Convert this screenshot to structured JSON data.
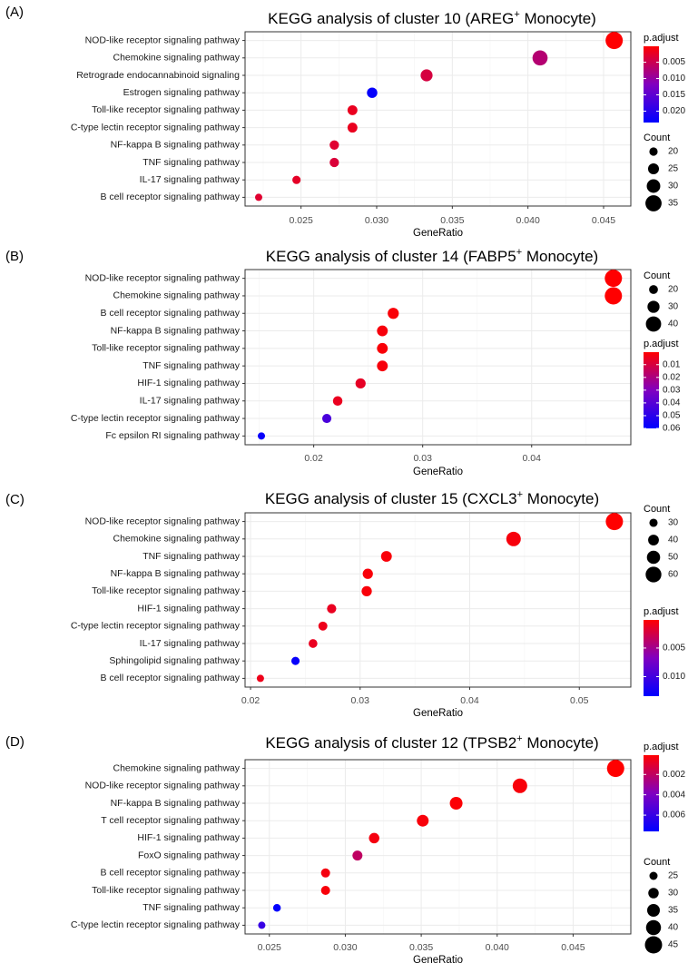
{
  "colors": {
    "low": "#ff0000",
    "high": "#0000ff",
    "mid": "#8000c0",
    "grid": "#ebebeb",
    "frame": "#333333"
  },
  "chart_data": [
    {
      "type": "scatter",
      "panel": "(A)",
      "title_pre": "KEGG analysis of cluster 10 (AREG",
      "title_sup": "+",
      "title_post": " Monocyte)",
      "xlabel": "GeneRatio",
      "xlim": [
        0.0213,
        0.0468
      ],
      "xticks": [
        0.025,
        0.03,
        0.035,
        0.04,
        0.045
      ],
      "xtick_labels": [
        "0.025",
        "0.030",
        "0.035",
        "0.040",
        "0.045"
      ],
      "categories": [
        "NOD-like receptor signaling pathway",
        "Chemokine signaling pathway",
        "Retrograde endocannabinoid signaling",
        "Estrogen signaling pathway",
        "Toll-like receptor signaling pathway",
        "C-type lectin receptor signaling pathway",
        "NF-kappa B signaling pathway",
        "TNF signaling pathway",
        "IL-17 signaling pathway",
        "B cell receptor signaling pathway"
      ],
      "x": [
        0.0457,
        0.0408,
        0.0333,
        0.0297,
        0.0284,
        0.0284,
        0.0272,
        0.0272,
        0.0247,
        0.0222
      ],
      "count": [
        37,
        33,
        27,
        24,
        23,
        23,
        22,
        22,
        20,
        18
      ],
      "p_adjust": [
        0.0002,
        0.007,
        0.004,
        0.023,
        0.002,
        0.002,
        0.003,
        0.0035,
        0.0025,
        0.003
      ],
      "color_range": [
        0.0001,
        0.0235
      ],
      "size_legend": {
        "title": "Count",
        "values": [
          20,
          25,
          30,
          35
        ],
        "labels": [
          "20",
          "25",
          "30",
          "35"
        ]
      },
      "color_legend": {
        "title": "p.adjust",
        "ticks": [
          0.005,
          0.01,
          0.015,
          0.02
        ],
        "labels": [
          "0.005",
          "0.010",
          "0.015",
          "0.020"
        ]
      },
      "legend_order": "color-first"
    },
    {
      "type": "scatter",
      "panel": "(B)",
      "title_pre": "KEGG analysis of cluster 14 (FABP5",
      "title_sup": "+",
      "title_post": " Monocyte)",
      "xlabel": "GeneRatio",
      "xlim": [
        0.0137,
        0.0491
      ],
      "xticks": [
        0.02,
        0.03,
        0.04
      ],
      "xtick_labels": [
        "0.02",
        "0.03",
        "0.04"
      ],
      "categories": [
        "NOD-like receptor signaling pathway",
        "Chemokine signaling pathway",
        "B cell receptor signaling pathway",
        "NF-kappa B signaling pathway",
        "Toll-like receptor signaling pathway",
        "TNF signaling pathway",
        "HIF-1 signaling pathway",
        "IL-17 signaling pathway",
        "C-type lectin receptor signaling pathway",
        "Fc epsilon RI signaling pathway"
      ],
      "x": [
        0.0475,
        0.0475,
        0.0273,
        0.0263,
        0.0263,
        0.0263,
        0.0243,
        0.0222,
        0.0212,
        0.0152
      ],
      "count": [
        46,
        46,
        27,
        26,
        26,
        26,
        24,
        22,
        21,
        15
      ],
      "p_adjust": [
        0.0003,
        0.0003,
        0.0015,
        0.002,
        0.0015,
        0.002,
        0.006,
        0.005,
        0.043,
        0.058
      ],
      "color_range": [
        0.0002,
        0.06
      ],
      "size_legend": {
        "title": "Count",
        "values": [
          20,
          30,
          40
        ],
        "labels": [
          "20",
          "30",
          "40"
        ]
      },
      "color_legend": {
        "title": "p.adjust",
        "ticks": [
          0.01,
          0.02,
          0.03,
          0.04,
          0.05,
          0.06
        ],
        "labels": [
          "0.01",
          "0.02",
          "0.03",
          "0.04",
          "0.05",
          "0.06"
        ]
      },
      "legend_order": "size-first"
    },
    {
      "type": "scatter",
      "panel": "(C)",
      "title_pre": "KEGG analysis of cluster 15 (CXCL3",
      "title_sup": "+",
      "title_post": " Monocyte)",
      "xlabel": "GeneRatio",
      "xlim": [
        0.0195,
        0.0547
      ],
      "xticks": [
        0.02,
        0.03,
        0.04,
        0.05
      ],
      "xtick_labels": [
        "0.02",
        "0.03",
        "0.04",
        "0.05"
      ],
      "categories": [
        "NOD-like receptor signaling pathway",
        "Chemokine signaling pathway",
        "TNF signaling pathway",
        "NF-kappa B signaling pathway",
        "Toll-like receptor signaling pathway",
        "HIF-1 signaling pathway",
        "C-type lectin receptor signaling pathway",
        "IL-17 signaling pathway",
        "Sphingolipid signaling pathway",
        "B cell receptor signaling pathway"
      ],
      "x": [
        0.0532,
        0.044,
        0.0324,
        0.0307,
        0.0306,
        0.0274,
        0.0266,
        0.0257,
        0.0241,
        0.0209
      ],
      "count": [
        66,
        55,
        40,
        38,
        38,
        34,
        33,
        32,
        30,
        26
      ],
      "p_adjust": [
        0.0001,
        0.0005,
        0.0004,
        0.0004,
        0.0004,
        0.0012,
        0.001,
        0.0012,
        0.013,
        0.001
      ],
      "color_range": [
        0.0001,
        0.0134
      ],
      "size_legend": {
        "title": "Count",
        "values": [
          30,
          40,
          50,
          60
        ],
        "labels": [
          "30",
          "40",
          "50",
          "60"
        ]
      },
      "color_legend": {
        "title": "p.adjust",
        "ticks": [
          0.005,
          0.01
        ],
        "labels": [
          "0.005",
          "0.010"
        ]
      },
      "legend_order": "size-first"
    },
    {
      "type": "scatter",
      "panel": "(D)",
      "title_pre": "KEGG analysis of cluster 12 (TPSB2",
      "title_sup": "+",
      "title_post": " Monocyte)",
      "xlabel": "GeneRatio",
      "xlim": [
        0.0234,
        0.0488
      ],
      "xticks": [
        0.025,
        0.03,
        0.035,
        0.04,
        0.045
      ],
      "xtick_labels": [
        "0.025",
        "0.030",
        "0.035",
        "0.040",
        "0.045"
      ],
      "categories": [
        "Chemokine signaling pathway",
        "NOD-like receptor signaling pathway",
        "NF-kappa B signaling pathway",
        "T cell receptor signaling pathway",
        "HIF-1 signaling pathway",
        "FoxO signaling pathway",
        "B cell receptor signaling pathway",
        "Toll-like receptor signaling pathway",
        "TNF signaling pathway",
        "C-type lectin receptor signaling pathway"
      ],
      "x": [
        0.0478,
        0.0415,
        0.0373,
        0.0351,
        0.0319,
        0.0308,
        0.0287,
        0.0287,
        0.0255,
        0.0245
      ],
      "count": [
        45,
        39,
        35,
        33,
        30,
        29,
        27,
        27,
        24,
        23
      ],
      "p_adjust": [
        0.0001,
        0.0003,
        0.0002,
        0.0003,
        0.0004,
        0.002,
        0.0004,
        0.0003,
        0.0075,
        0.006
      ],
      "color_range": [
        0.0001,
        0.0076
      ],
      "size_legend": {
        "title": "Count",
        "values": [
          25,
          30,
          35,
          40,
          45
        ],
        "labels": [
          "25",
          "30",
          "35",
          "40",
          "45"
        ]
      },
      "color_legend": {
        "title": "p.adjust",
        "ticks": [
          0.002,
          0.004,
          0.006
        ],
        "labels": [
          "0.002",
          "0.004",
          "0.006"
        ]
      },
      "legend_order": "color-first"
    }
  ]
}
